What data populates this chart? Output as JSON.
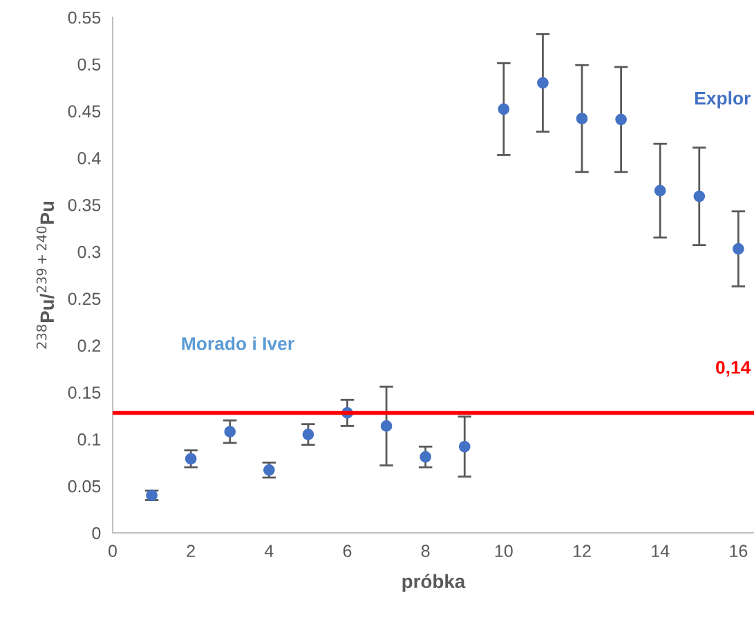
{
  "chart_data": {
    "type": "scatter",
    "xlabel": "próbka",
    "ylabel": "$^{238}$Pu/$^{239+240}$Pu",
    "x": [
      1,
      2,
      3,
      4,
      5,
      6,
      7,
      8,
      9,
      10,
      11,
      12,
      13,
      14,
      15,
      16
    ],
    "series": [
      {
        "color": "#4472c4",
        "values": [
          0.04,
          0.079,
          0.108,
          0.067,
          0.105,
          0.128,
          0.114,
          0.081,
          0.092,
          0.452,
          0.48,
          0.442,
          0.441,
          0.365,
          0.359,
          0.303
        ],
        "errors": [
          0.005,
          0.009,
          0.012,
          0.008,
          0.011,
          0.014,
          0.042,
          0.011,
          0.032,
          0.049,
          0.052,
          0.057,
          0.056,
          0.05,
          0.052,
          0.04
        ]
      }
    ],
    "xlim": [
      0,
      16.4
    ],
    "xticks": [
      0,
      2,
      4,
      6,
      8,
      10,
      12,
      14,
      16
    ],
    "ylim": [
      0,
      0.55
    ],
    "yticks": [
      0,
      0.05,
      0.1,
      0.15,
      0.2,
      0.25,
      0.3,
      0.35,
      0.4,
      0.45,
      0.5,
      0.55
    ],
    "ref_lines": [
      {
        "axis": "y",
        "value": 0.128,
        "color": "#ff0000",
        "line_style": "solid"
      }
    ],
    "annotations": [
      "Morado i Iver",
      "Explor",
      "0,14"
    ],
    "grid": false,
    "legend": false,
    "marker": "circle"
  }
}
